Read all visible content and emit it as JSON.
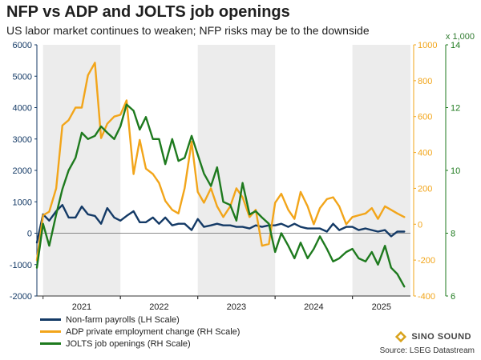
{
  "header": {
    "title": "NFP vs ADP and JOLTS job openings",
    "subtitle": "US labor market continues to weaken; NFP risks may be to the downside",
    "rh2_unit": "x 1,000"
  },
  "legend": [
    {
      "label": "Non-farm payrolls (LH Scale)",
      "color": "#143a66"
    },
    {
      "label": "ADP private employment change (RH Scale)",
      "color": "#f2a51a"
    },
    {
      "label": "JOLTS job openings (RH Scale)",
      "color": "#1e7a1e"
    }
  ],
  "source": "Source: LSEG Datastream",
  "logo": {
    "text": "SINO SOUND"
  },
  "chart_data": {
    "type": "line",
    "title": "NFP vs ADP and JOLTS job openings",
    "subtitle": "US labor market continues to weaken; NFP risks may be to the downside",
    "x_range": [
      2020.92,
      2025.75
    ],
    "x_ticks": [
      "2021",
      "2022",
      "2023",
      "2024",
      "2025"
    ],
    "shaded_years": [
      2021,
      2023,
      2025
    ],
    "grid": false,
    "legend_position": "bottom-left",
    "axes": {
      "left": {
        "ylim": [
          -2000,
          6000
        ],
        "ticks": [
          -2000,
          -1000,
          0,
          1000,
          2000,
          3000,
          4000,
          5000,
          6000
        ],
        "color": "#143a66"
      },
      "right1": {
        "ylim": [
          -400,
          1000
        ],
        "ticks": [
          -400,
          -200,
          0,
          200,
          400,
          600,
          800,
          1000
        ],
        "color": "#f2a51a"
      },
      "right2": {
        "ylim": [
          6,
          14
        ],
        "ticks": [
          6,
          8,
          10,
          12,
          14
        ],
        "color": "#1e7a1e",
        "unit_label": "x 1,000"
      }
    },
    "series": [
      {
        "name": "Non-farm payrolls (LH Scale)",
        "axis": "left",
        "color": "#143a66",
        "x": [
          2020.92,
          2021.0,
          2021.08,
          2021.17,
          2021.25,
          2021.33,
          2021.42,
          2021.5,
          2021.58,
          2021.67,
          2021.75,
          2021.83,
          2021.92,
          2022.0,
          2022.08,
          2022.17,
          2022.25,
          2022.33,
          2022.42,
          2022.5,
          2022.58,
          2022.67,
          2022.75,
          2022.83,
          2022.92,
          2023.0,
          2023.08,
          2023.17,
          2023.25,
          2023.33,
          2023.42,
          2023.5,
          2023.58,
          2023.67,
          2023.75,
          2023.83,
          2023.92,
          2024.0,
          2024.08,
          2024.17,
          2024.25,
          2024.33,
          2024.42,
          2024.5,
          2024.58,
          2024.67,
          2024.75,
          2024.83,
          2024.92,
          2025.0,
          2025.08,
          2025.17,
          2025.25,
          2025.33,
          2025.42,
          2025.5,
          2025.58,
          2025.67
        ],
        "y": [
          -300,
          600,
          400,
          700,
          900,
          500,
          500,
          850,
          600,
          550,
          300,
          800,
          500,
          400,
          550,
          700,
          350,
          350,
          500,
          300,
          500,
          250,
          300,
          300,
          100,
          450,
          200,
          250,
          300,
          250,
          250,
          200,
          200,
          150,
          250,
          200,
          250,
          250,
          300,
          200,
          300,
          200,
          150,
          150,
          150,
          50,
          300,
          100,
          200,
          200,
          100,
          150,
          100,
          50,
          100,
          -100,
          50,
          50
        ]
      },
      {
        "name": "ADP private employment change (RH Scale)",
        "axis": "right1",
        "color": "#f2a51a",
        "x": [
          2020.92,
          2021.0,
          2021.08,
          2021.17,
          2021.25,
          2021.33,
          2021.42,
          2021.5,
          2021.58,
          2021.67,
          2021.75,
          2021.83,
          2021.92,
          2022.0,
          2022.08,
          2022.17,
          2022.25,
          2022.33,
          2022.42,
          2022.5,
          2022.58,
          2022.67,
          2022.75,
          2022.83,
          2022.92,
          2023.0,
          2023.08,
          2023.17,
          2023.25,
          2023.33,
          2023.42,
          2023.5,
          2023.58,
          2023.67,
          2023.75,
          2023.83,
          2023.92,
          2024.0,
          2024.08,
          2024.17,
          2024.25,
          2024.33,
          2024.42,
          2024.5,
          2024.58,
          2024.67,
          2024.75,
          2024.83,
          2024.92,
          2025.0,
          2025.08,
          2025.17,
          2025.25,
          2025.33,
          2025.42,
          2025.5,
          2025.58,
          2025.67
        ],
        "y": [
          -200,
          50,
          70,
          200,
          550,
          580,
          650,
          650,
          830,
          900,
          480,
          560,
          600,
          610,
          690,
          280,
          470,
          310,
          280,
          230,
          130,
          80,
          60,
          200,
          460,
          180,
          120,
          200,
          100,
          40,
          100,
          200,
          150,
          40,
          80,
          -120,
          -110,
          120,
          170,
          80,
          30,
          180,
          100,
          0,
          90,
          140,
          150,
          100,
          0,
          40,
          50,
          60,
          90,
          30,
          100,
          80,
          60,
          40
        ]
      },
      {
        "name": "JOLTS job openings (RH Scale)",
        "axis": "right1",
        "axis_units": "right2",
        "color": "#1e7a1e",
        "x": [
          2020.92,
          2021.0,
          2021.08,
          2021.17,
          2021.25,
          2021.33,
          2021.42,
          2021.5,
          2021.58,
          2021.67,
          2021.75,
          2021.83,
          2021.92,
          2022.0,
          2022.08,
          2022.17,
          2022.25,
          2022.33,
          2022.42,
          2022.5,
          2022.58,
          2022.67,
          2022.75,
          2022.83,
          2022.92,
          2023.0,
          2023.08,
          2023.17,
          2023.25,
          2023.33,
          2023.42,
          2023.5,
          2023.58,
          2023.67,
          2023.75,
          2023.83,
          2023.92,
          2024.0,
          2024.08,
          2024.17,
          2024.25,
          2024.33,
          2024.42,
          2024.5,
          2024.58,
          2024.67,
          2024.75,
          2024.83,
          2024.92,
          2025.0,
          2025.08,
          2025.17,
          2025.25,
          2025.33,
          2025.42,
          2025.5,
          2025.58,
          2025.67
        ],
        "y": [
          6.9,
          8.3,
          7.6,
          8.6,
          9.4,
          10.0,
          10.4,
          11.2,
          11.0,
          11.1,
          11.4,
          11.2,
          11.0,
          11.4,
          12.1,
          11.9,
          11.3,
          11.7,
          11.0,
          11.0,
          10.2,
          11.0,
          10.3,
          10.4,
          11.1,
          10.5,
          9.9,
          9.5,
          10.1,
          9.0,
          8.9,
          8.4,
          9.6,
          8.6,
          8.7,
          8.5,
          8.3,
          7.4,
          8.0,
          7.6,
          7.2,
          7.7,
          7.2,
          7.5,
          7.9,
          7.5,
          7.1,
          7.2,
          7.4,
          7.5,
          7.2,
          7.1,
          7.4,
          7.0,
          7.6,
          6.9,
          6.7,
          6.3
        ]
      }
    ]
  }
}
